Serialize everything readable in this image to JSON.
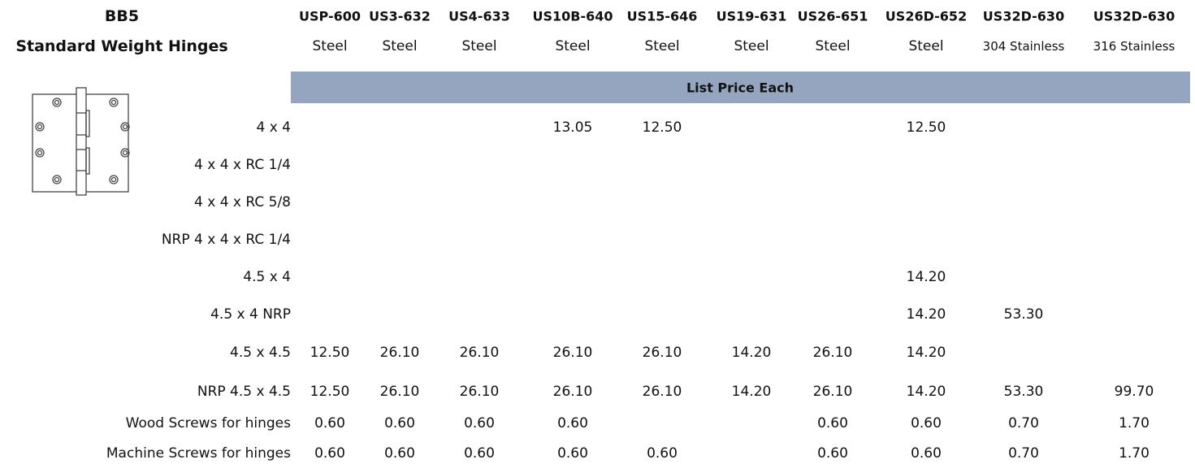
{
  "header": {
    "product": "BB5",
    "title": "Standard Weight Hinges",
    "banner": "List Price Each"
  },
  "columns": [
    {
      "finish": "USP-600",
      "material": "Steel"
    },
    {
      "finish": "US3-632",
      "material": "Steel"
    },
    {
      "finish": "US4-633",
      "material": "Steel"
    },
    {
      "finish": "US10B-640",
      "material": "Steel"
    },
    {
      "finish": "US15-646",
      "material": "Steel"
    },
    {
      "finish": "US19-631",
      "material": "Steel"
    },
    {
      "finish": "US26-651",
      "material": "Steel"
    },
    {
      "finish": "US26D-652",
      "material": "Steel"
    },
    {
      "finish": "US32D-630",
      "material": "304 Stainless"
    },
    {
      "finish": "US32D-630",
      "material": "316 Stainless"
    }
  ],
  "table": {
    "rows": [
      {
        "label": "4 x 4",
        "cells": [
          null,
          null,
          null,
          "13.05",
          "12.50",
          null,
          null,
          "12.50",
          null,
          null
        ]
      },
      {
        "label": "4 x 4 x RC 1/4",
        "cells": [
          null,
          null,
          null,
          null,
          null,
          null,
          null,
          null,
          null,
          null
        ]
      },
      {
        "label": "4 x 4 x RC 5/8",
        "cells": [
          null,
          null,
          null,
          null,
          null,
          null,
          null,
          null,
          null,
          null
        ]
      },
      {
        "label": "NRP 4 x 4 x RC 1/4",
        "cells": [
          null,
          null,
          null,
          null,
          null,
          null,
          null,
          null,
          null,
          null
        ]
      },
      {
        "label": "4.5 x 4",
        "cells": [
          null,
          null,
          null,
          null,
          null,
          null,
          null,
          "14.20",
          null,
          null
        ]
      },
      {
        "label": "4.5 x 4 NRP",
        "cells": [
          null,
          null,
          null,
          null,
          null,
          null,
          null,
          "14.20",
          "53.30",
          null
        ]
      },
      {
        "label": "4.5 x 4.5",
        "cells": [
          "12.50",
          "26.10",
          "26.10",
          "26.10",
          "26.10",
          "14.20",
          "26.10",
          "14.20",
          null,
          null
        ]
      },
      {
        "label": "NRP 4.5 x 4.5",
        "cells": [
          "12.50",
          "26.10",
          "26.10",
          "26.10",
          "26.10",
          "14.20",
          "26.10",
          "14.20",
          "53.30",
          "99.70"
        ]
      },
      {
        "label": "Wood Screws for hinges",
        "cells": [
          "0.60",
          "0.60",
          "0.60",
          "0.60",
          null,
          null,
          "0.60",
          "0.60",
          "0.70",
          "1.70"
        ]
      },
      {
        "label": "Machine Screws for hinges",
        "cells": [
          "0.60",
          "0.60",
          "0.60",
          "0.60",
          "0.60",
          null,
          "0.60",
          "0.60",
          "0.70",
          "1.70"
        ]
      }
    ]
  }
}
